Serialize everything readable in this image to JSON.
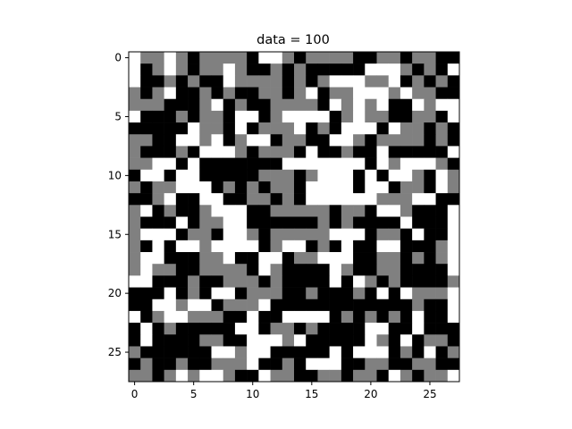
{
  "chart_data": {
    "type": "heatmap",
    "title": "data = 100",
    "xlabel": "",
    "ylabel": "",
    "rows": 28,
    "cols": 28,
    "xlim": [
      -0.5,
      27.5
    ],
    "ylim": [
      27.5,
      -0.5
    ],
    "xticks": [
      0,
      5,
      10,
      15,
      20,
      25
    ],
    "yticks": [
      0,
      5,
      10,
      15,
      20,
      25
    ],
    "colormap": "gray (3 levels)",
    "colors": {
      "0": "#000000",
      "1": "#808080",
      "2": "#ffffff"
    },
    "grid": false,
    "legend": "none",
    "values": [
      "2112101111022101111001101100",
      "2012101121001010000022210102",
      "2001010021111010122211201010",
      "1012001010011012011222121100",
      "1110001201001111021212002122",
      "2000101102201222201211001102",
      "0000021102011120102220211010",
      "1100221201220110022101111010",
      "1000102221011102001002000002",
      "1122020000000222222202122210",
      "0220220000011101222020221021",
      "1011222010101102222022011021",
      "0012002200110102222221112200",
      "1201001222001111101102210002",
      "1000201122000000101000020002",
      "1222011022101111122201102002",
      "1020221222201220102002200012",
      "1220001120022011222001101012",
      "1211001111021000021001100002",
      "2200010011101000020210100001",
      "0002010220111001000102021112",
      "0022122011120000000000001002",
      "2012211100200222201010102002",
      "0201000002201101000022002000",
      "0200001100222120000021020110",
      "1000000221220000020222010201",
      "0100100111200102220011001100",
      "1101212210021100110110210112"
    ]
  }
}
